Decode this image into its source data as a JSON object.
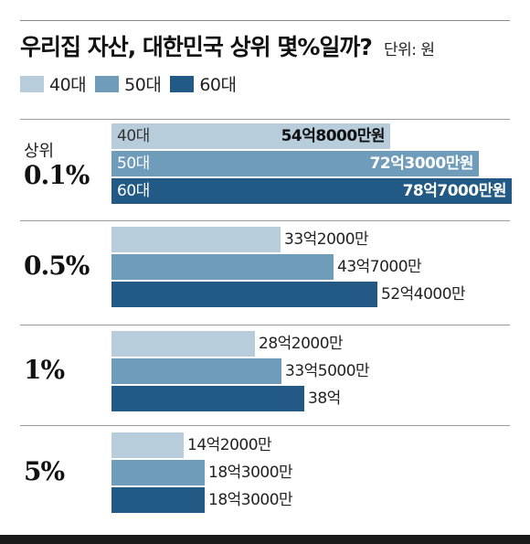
{
  "title": "우리집 자산, 대한민국 상위 몇%일까?",
  "unit": "단위: 원",
  "colors": {
    "40대": "#b7cddb",
    "50대": "#6f9cba",
    "60대": "#235a85"
  },
  "chart_data": {
    "type": "bar",
    "orientation": "horizontal",
    "title": "우리집 자산, 대한민국 상위 몇%일까?",
    "unit": "단위: 원",
    "legend": [
      "40대",
      "50대",
      "60대"
    ],
    "legend_position": "top-left",
    "groups": [
      {
        "label_top": "상위",
        "label": "0.1%",
        "series_labels_inside": true,
        "bars": [
          {
            "series": "40대",
            "value": 548000,
            "label": "54억8000만원"
          },
          {
            "series": "50대",
            "value": 723000,
            "label": "72억3000만원"
          },
          {
            "series": "60대",
            "value": 787000,
            "label": "78억7000만원"
          }
        ]
      },
      {
        "label_top": "",
        "label": "0.5%",
        "series_labels_inside": false,
        "bars": [
          {
            "series": "40대",
            "value": 332000,
            "label": "33억2000만"
          },
          {
            "series": "50대",
            "value": 437000,
            "label": "43억7000만"
          },
          {
            "series": "60대",
            "value": 524000,
            "label": "52억4000만"
          }
        ]
      },
      {
        "label_top": "",
        "label": "1%",
        "series_labels_inside": false,
        "bars": [
          {
            "series": "40대",
            "value": 282000,
            "label": "28억2000만"
          },
          {
            "series": "50대",
            "value": 335000,
            "label": "33억5000만"
          },
          {
            "series": "60대",
            "value": 380000,
            "label": "38억"
          }
        ]
      },
      {
        "label_top": "",
        "label": "5%",
        "series_labels_inside": false,
        "bars": [
          {
            "series": "40대",
            "value": 142000,
            "label": "14억2000만"
          },
          {
            "series": "50대",
            "value": 183000,
            "label": "18억3000만"
          },
          {
            "series": "60대",
            "value": 183000,
            "label": "18억3000만"
          }
        ]
      }
    ]
  }
}
